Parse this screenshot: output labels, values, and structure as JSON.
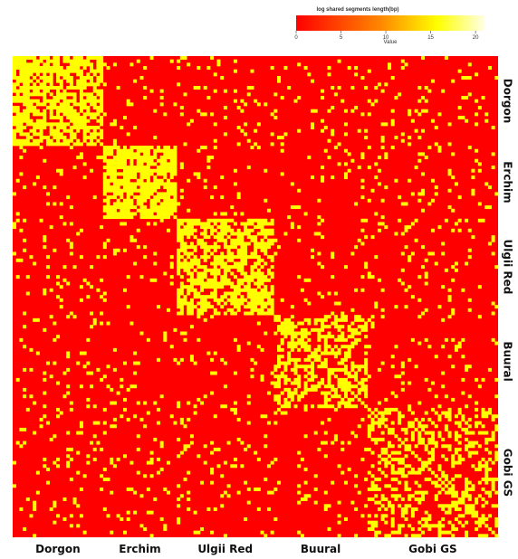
{
  "chart_data": {
    "type": "heatmap",
    "title": "",
    "value_range": [
      0,
      21
    ],
    "colors": {
      "low": "#ff0000",
      "mid": "#ffa500",
      "high": "#ffff00",
      "max": "#ffffe6"
    },
    "legend": {
      "title": "log shared segments length(bp)",
      "subtitle": "Value",
      "ticks": [
        "0",
        "5",
        "10",
        "15",
        "20"
      ],
      "tick_values": [
        0,
        5,
        10,
        15,
        20
      ]
    },
    "groups": [
      {
        "name": "Dorgon",
        "count": 27,
        "within_density": 0.72
      },
      {
        "name": "Erchim",
        "count": 22,
        "within_density": 0.78
      },
      {
        "name": "Ulgii Red",
        "count": 29,
        "within_density": 0.6
      },
      {
        "name": "Buural",
        "count": 28,
        "within_density": 0.48
      },
      {
        "name": "Gobi GS",
        "count": 39,
        "within_density": 0.35
      }
    ],
    "between_density": 0.07,
    "row_labels": [
      "Dorgon",
      "Erchim",
      "Ulgii Red",
      "Buural",
      "Gobi GS"
    ],
    "col_labels": [
      "Dorgon",
      "Erchim",
      "Ulgii Red",
      "Buural",
      "Gobi GS"
    ]
  }
}
